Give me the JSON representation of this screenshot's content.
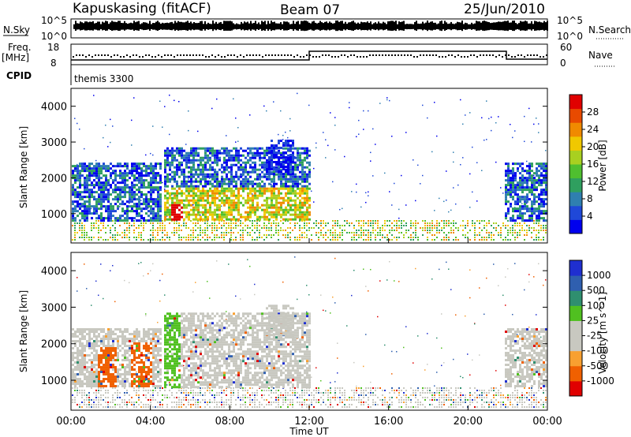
{
  "header": {
    "station": "Kapuskasing (fitACF)",
    "beam": "Beam 07",
    "date": "25/Jun/2010"
  },
  "noise_panel": {
    "left_label": "N.Sky",
    "left_ticks": [
      "10^5",
      "10^0"
    ],
    "right_label": "N.Search",
    "right_ticks": [
      "10^5",
      "10^0"
    ]
  },
  "freq_panel": {
    "left_label_1": "Freq.",
    "left_label_2": "[MHz]",
    "left_ticks": [
      "18",
      "8"
    ],
    "right_label": "Nave",
    "right_ticks": [
      "60",
      "0"
    ],
    "cpid_label": "CPID",
    "cpid_value": "themis 3300"
  },
  "chart_data": [
    {
      "type": "heatmap",
      "name": "power",
      "ylabel": "Slant Range [km]",
      "yticks": [
        "1000",
        "2000",
        "3000",
        "4000"
      ],
      "ylim": [
        180,
        4500
      ],
      "xlim_hours": [
        0,
        24
      ],
      "colorbar": {
        "label": "Power [dB]",
        "ticks": [
          "28",
          "24",
          "20",
          "16",
          "12",
          "8",
          "4"
        ],
        "colors": [
          "#0000ee",
          "#1f48d8",
          "#2f7fb0",
          "#2f9f5f",
          "#4fbf2f",
          "#a8d020",
          "#f0c800",
          "#f08a00",
          "#e84a00",
          "#e00000"
        ]
      }
    },
    {
      "type": "heatmap",
      "name": "velocity",
      "ylabel": "Slant Range [km]",
      "yticks": [
        "1000",
        "2000",
        "3000",
        "4000"
      ],
      "ylim": [
        180,
        4500
      ],
      "xlim_hours": [
        0,
        24
      ],
      "colorbar": {
        "label": "Velocity [m s^-1]",
        "ticks": [
          "1000",
          "500",
          "100",
          "25",
          "-25",
          "-100",
          "-500",
          "-1000"
        ],
        "colors": [
          "#e00000",
          "#f06000",
          "#f8a030",
          "#c8c8c0",
          "#c8c8c0",
          "#50c020",
          "#2f8f6f",
          "#2f5faf",
          "#1f2fd0"
        ]
      }
    }
  ],
  "xaxis": {
    "label": "Time UT",
    "ticks": [
      "00:00",
      "04:00",
      "08:00",
      "12:00",
      "16:00",
      "20:00",
      "00:00"
    ]
  }
}
